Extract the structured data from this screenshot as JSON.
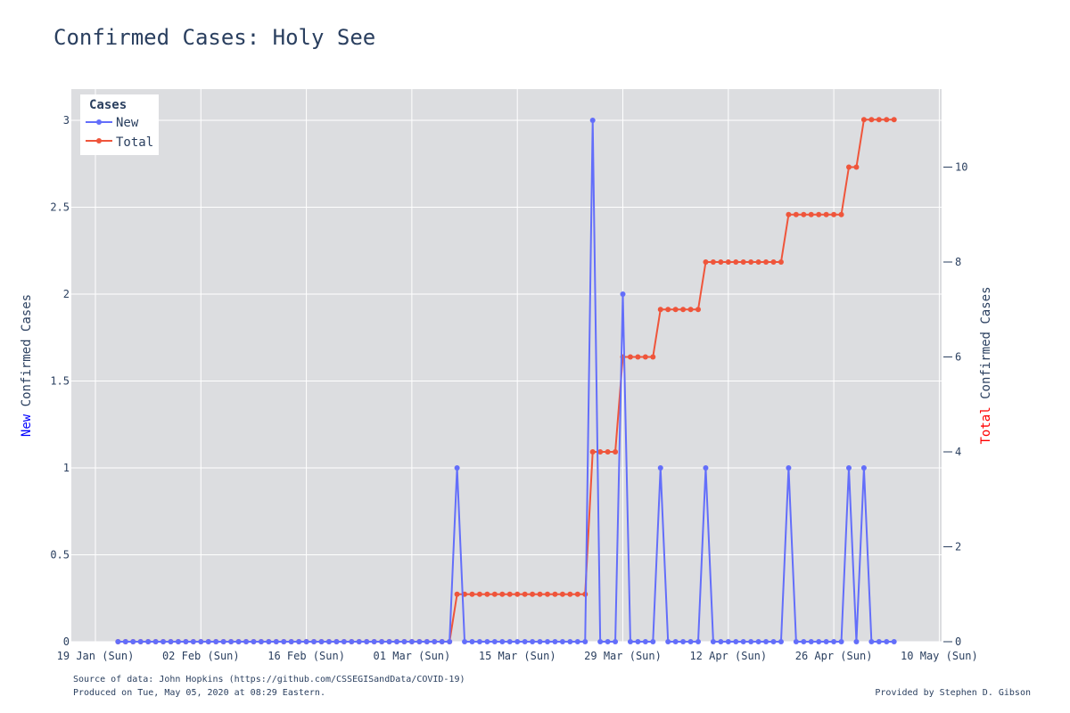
{
  "chart_data": {
    "type": "line",
    "title": "Confirmed Cases: Holy See",
    "x_start": "2020-01-22",
    "x_ticks": [
      "19 Jan (Sun)",
      "02 Feb (Sun)",
      "16 Feb (Sun)",
      "01 Mar (Sun)",
      "15 Mar (Sun)",
      "29 Mar (Sun)",
      "12 Apr (Sun)",
      "26 Apr (Sun)",
      "10 May (Sun)"
    ],
    "y_left": {
      "label_colored": "New",
      "label_rest": " Confirmed Cases",
      "label_color": "#0000ff",
      "range": [
        0,
        3.18
      ],
      "ticks": [
        "0",
        "0.5",
        "1",
        "1.5",
        "2",
        "2.5",
        "3"
      ]
    },
    "y_right": {
      "label_colored": "Total",
      "label_rest": " Confirmed Cases",
      "label_color": "#ff0000",
      "range": [
        0,
        11.66
      ],
      "ticks": [
        "0",
        "2",
        "4",
        "6",
        "8",
        "10"
      ]
    },
    "legend": {
      "title": "Cases",
      "placement": "top-left"
    },
    "series": [
      {
        "name": "New",
        "color": "#636efa",
        "axis": "left",
        "values": [
          0,
          0,
          0,
          0,
          0,
          0,
          0,
          0,
          0,
          0,
          0,
          0,
          0,
          0,
          0,
          0,
          0,
          0,
          0,
          0,
          0,
          0,
          0,
          0,
          0,
          0,
          0,
          0,
          0,
          0,
          0,
          0,
          0,
          0,
          0,
          0,
          0,
          0,
          0,
          0,
          0,
          0,
          0,
          0,
          0,
          1,
          0,
          0,
          0,
          0,
          0,
          0,
          0,
          0,
          0,
          0,
          0,
          0,
          0,
          0,
          0,
          0,
          0,
          3,
          0,
          0,
          0,
          2,
          0,
          0,
          0,
          0,
          1,
          0,
          0,
          0,
          0,
          0,
          1,
          0,
          0,
          0,
          0,
          0,
          0,
          0,
          0,
          0,
          0,
          1,
          0,
          0,
          0,
          0,
          0,
          0,
          0,
          1,
          0,
          1,
          0,
          0,
          0,
          0
        ]
      },
      {
        "name": "Total",
        "color": "#ef553b",
        "axis": "right",
        "values": [
          0,
          0,
          0,
          0,
          0,
          0,
          0,
          0,
          0,
          0,
          0,
          0,
          0,
          0,
          0,
          0,
          0,
          0,
          0,
          0,
          0,
          0,
          0,
          0,
          0,
          0,
          0,
          0,
          0,
          0,
          0,
          0,
          0,
          0,
          0,
          0,
          0,
          0,
          0,
          0,
          0,
          0,
          0,
          0,
          0,
          1,
          1,
          1,
          1,
          1,
          1,
          1,
          1,
          1,
          1,
          1,
          1,
          1,
          1,
          1,
          1,
          1,
          1,
          4,
          4,
          4,
          4,
          6,
          6,
          6,
          6,
          6,
          7,
          7,
          7,
          7,
          7,
          7,
          8,
          8,
          8,
          8,
          8,
          8,
          8,
          8,
          8,
          8,
          8,
          9,
          9,
          9,
          9,
          9,
          9,
          9,
          9,
          10,
          10,
          11,
          11,
          11,
          11,
          11
        ]
      }
    ],
    "grid": true
  },
  "footer": {
    "source": "Source of data: John Hopkins (https://github.com/CSSEGISandData/COVID-19)",
    "produced": "Produced on Tue, May 05, 2020 at 08:29 Eastern.",
    "provided": "Provided by Stephen D. Gibson"
  }
}
